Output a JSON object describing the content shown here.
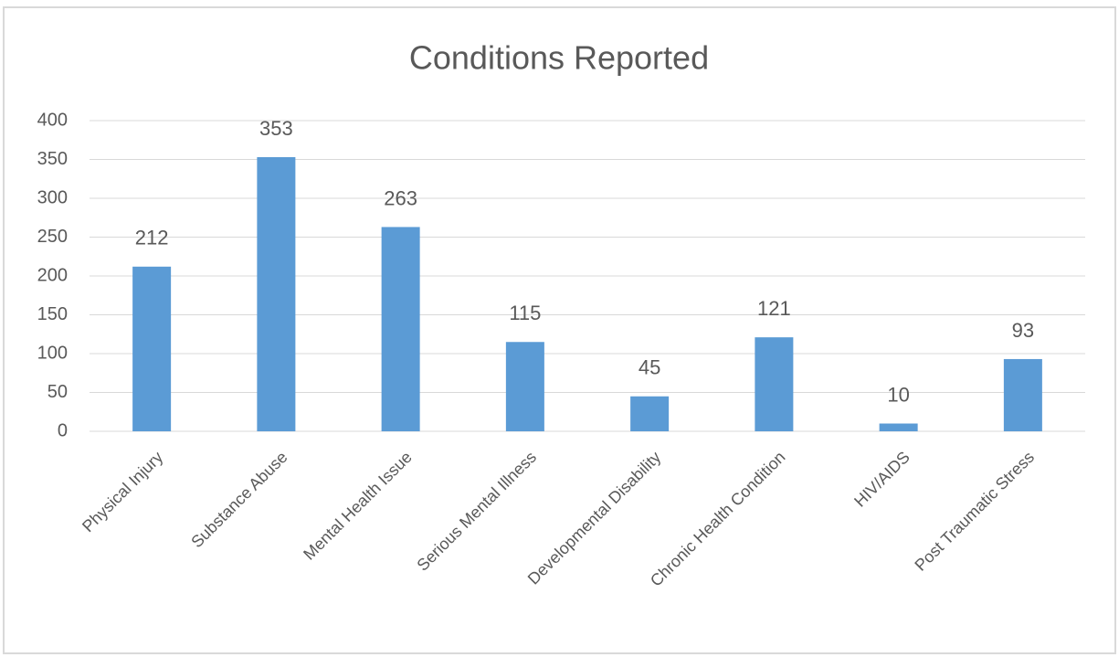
{
  "chart_data": {
    "type": "bar",
    "title": "Conditions Reported",
    "categories": [
      "Physical Injury",
      "Substance Abuse",
      "Mental Health Issue",
      "Serious Mental Illness",
      "Developmental Disability",
      "Chronic Health Condition",
      "HIV/AIDS",
      "Post Traumatic Stress"
    ],
    "values": [
      212,
      353,
      263,
      115,
      45,
      121,
      10,
      93
    ],
    "color": "#5b9bd5",
    "ylim": [
      0,
      400
    ],
    "yticks": [
      0,
      50,
      100,
      150,
      200,
      250,
      300,
      350,
      400
    ],
    "grid": true
  }
}
